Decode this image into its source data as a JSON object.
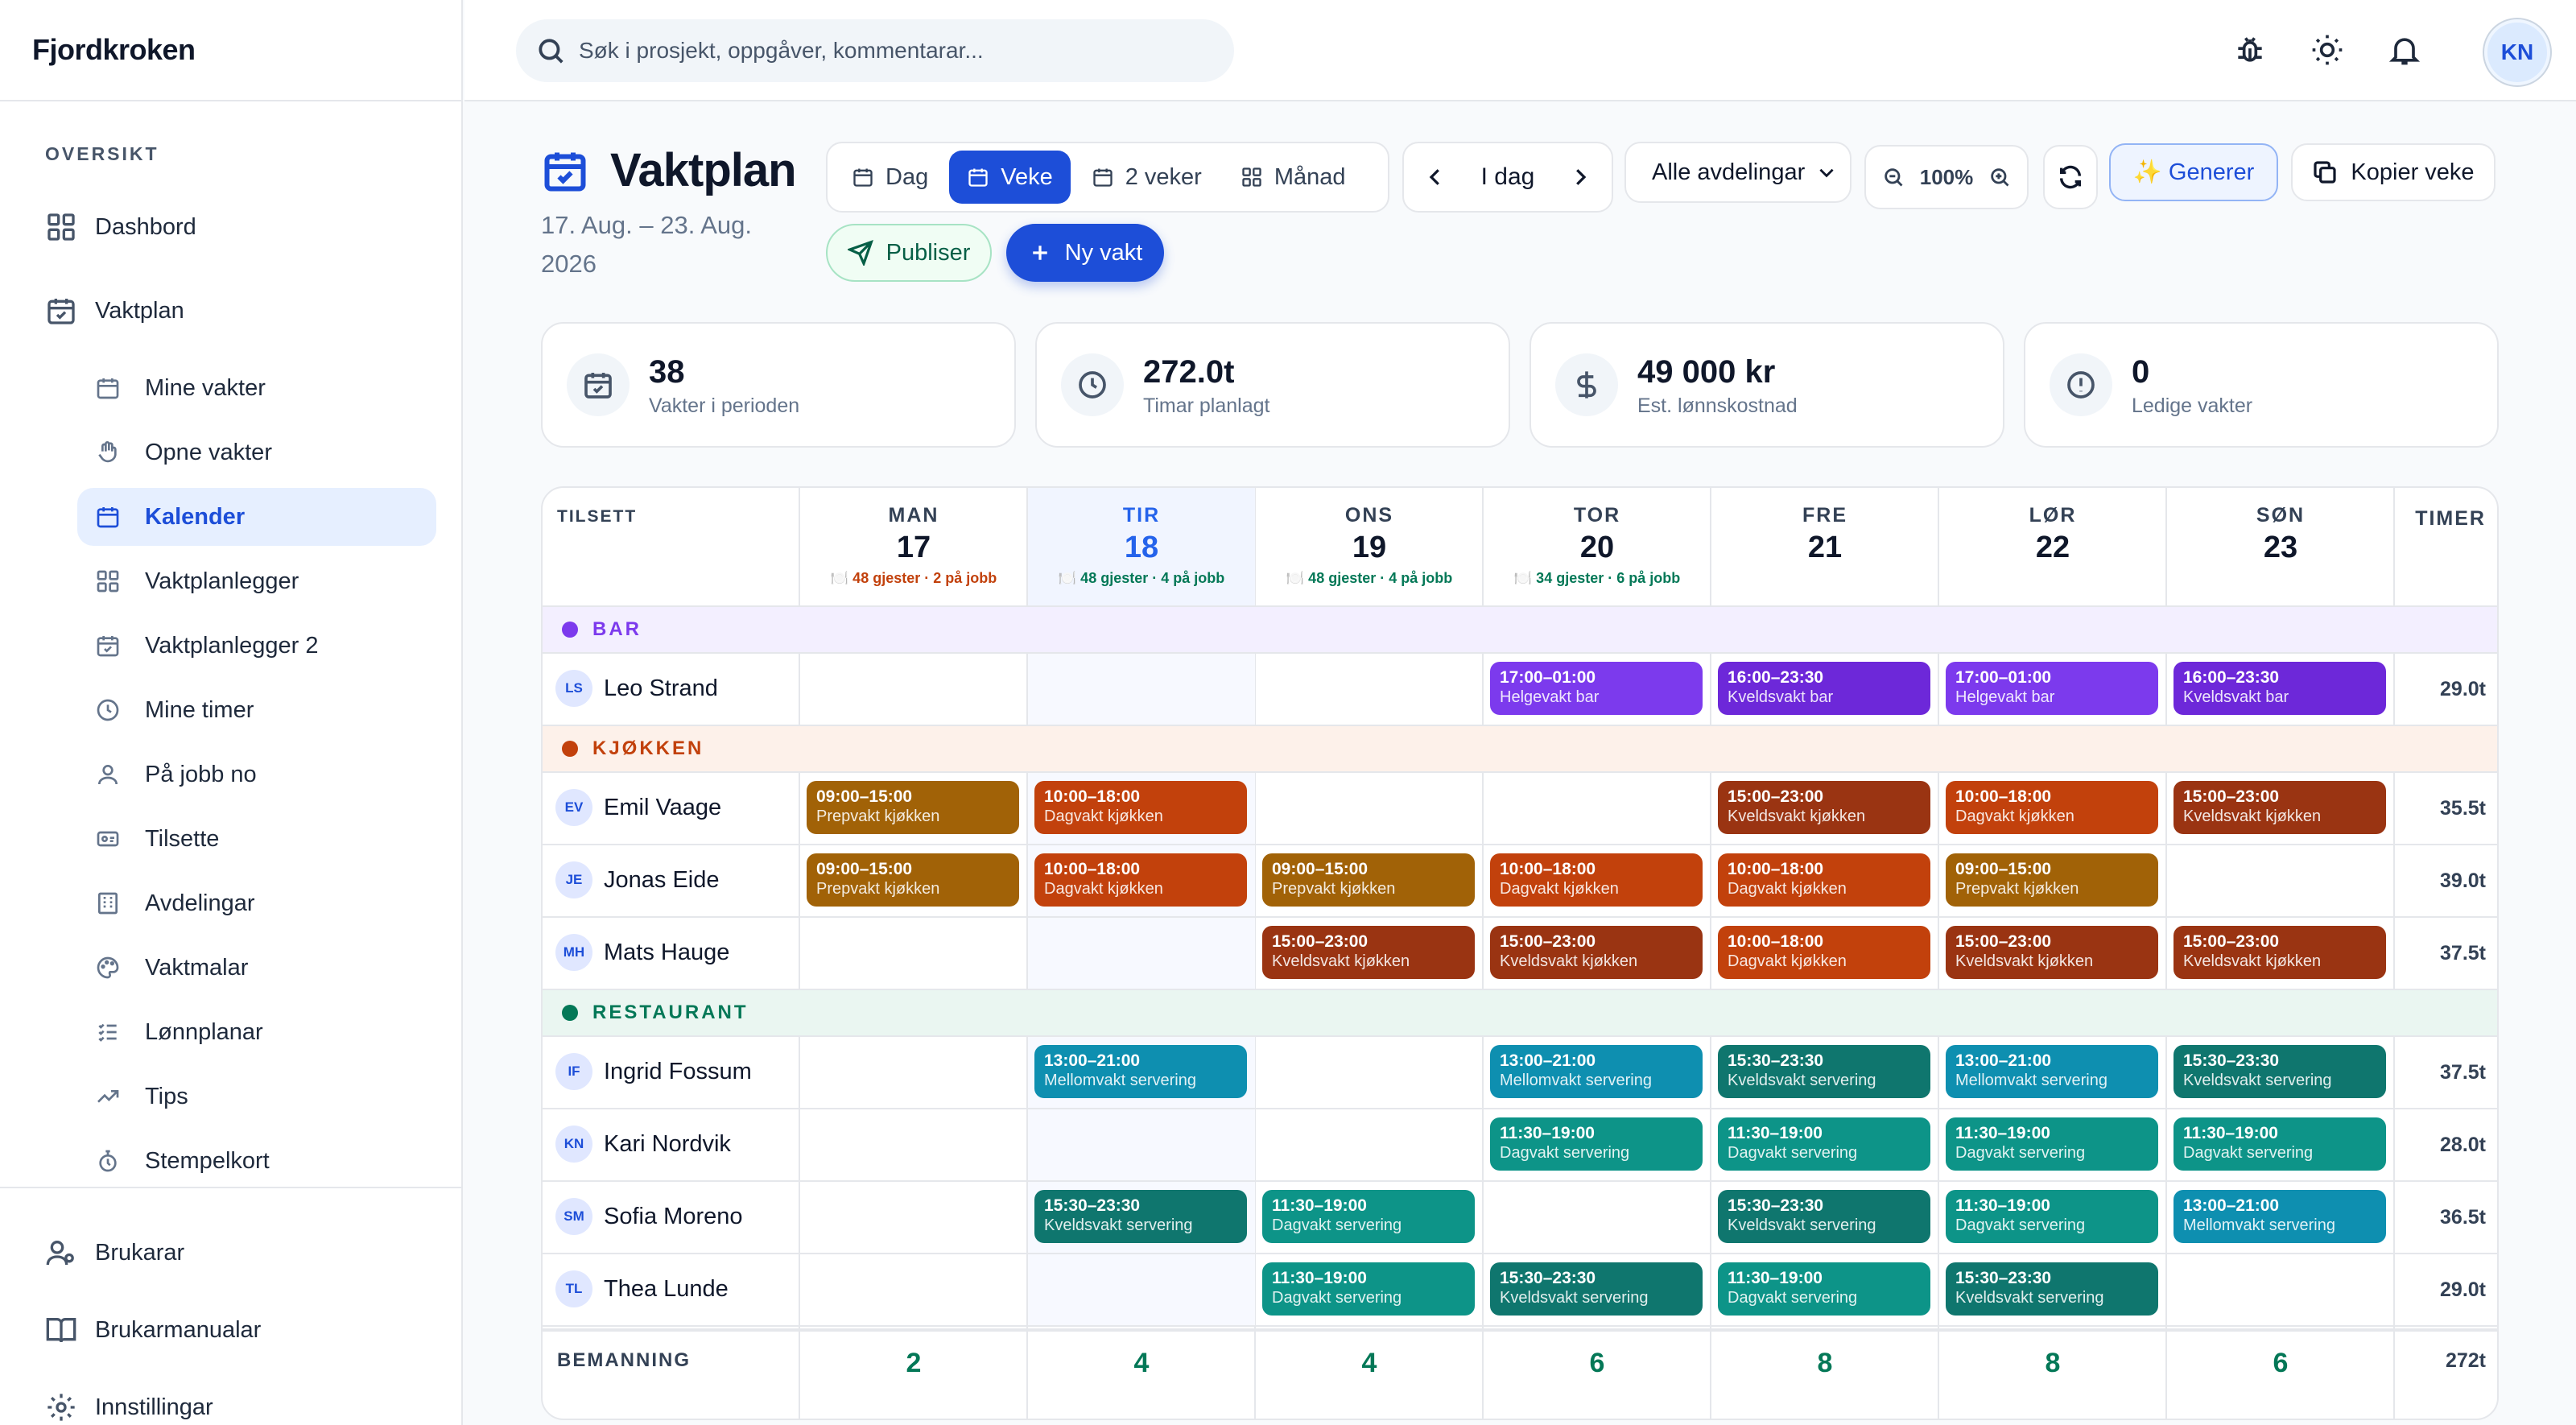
{
  "app": {
    "name": "Fjordkroken"
  },
  "sidebar": {
    "section": "OVERSIKT",
    "main_items": [
      {
        "label": "Dashbord",
        "icon": "grid-icon"
      },
      {
        "label": "Vaktplan",
        "icon": "calendar-check-icon"
      }
    ],
    "sub_items": [
      {
        "label": "Mine vakter",
        "icon": "calendar-icon",
        "active": false
      },
      {
        "label": "Opne vakter",
        "icon": "hand-icon",
        "active": false
      },
      {
        "label": "Kalender",
        "icon": "calendar-icon",
        "active": true
      },
      {
        "label": "Vaktplanlegger",
        "icon": "grid-icon",
        "active": false
      },
      {
        "label": "Vaktplanlegger 2",
        "icon": "calendar-check-icon",
        "active": false
      },
      {
        "label": "Mine timer",
        "icon": "clock-icon",
        "active": false
      },
      {
        "label": "På jobb no",
        "icon": "user-icon",
        "active": false
      },
      {
        "label": "Tilsette",
        "icon": "id-card-icon",
        "active": false
      },
      {
        "label": "Avdelingar",
        "icon": "building-icon",
        "active": false
      },
      {
        "label": "Vaktmalar",
        "icon": "palette-icon",
        "active": false
      },
      {
        "label": "Lønnplanar",
        "icon": "list-check-icon",
        "active": false
      },
      {
        "label": "Tips",
        "icon": "trend-icon",
        "active": false
      },
      {
        "label": "Stempelkort",
        "icon": "stopwatch-icon",
        "active": false
      }
    ],
    "bottom_items": [
      {
        "label": "Brukarar",
        "icon": "user-gear-icon"
      },
      {
        "label": "Brukarmanualar",
        "icon": "book-icon"
      },
      {
        "label": "Innstillingar",
        "icon": "gear-icon"
      }
    ]
  },
  "topbar": {
    "search_placeholder": "Søk i prosjekt, oppgåver, kommentarar...",
    "avatar": "KN"
  },
  "header": {
    "title": "Vaktplan",
    "date_range": "17. Aug. – 23. Aug. 2026",
    "views": [
      "Dag",
      "Veke",
      "2 veker",
      "Månad"
    ],
    "active_view": "Veke",
    "today_label": "I dag",
    "department_select": "Alle avdelingar",
    "zoom": "100%",
    "generate_label": "✨ Generer",
    "copy_week_label": "Kopier veke",
    "publish_label": "Publiser",
    "new_shift_label": "Ny vakt"
  },
  "stats": [
    {
      "value": "38",
      "label": "Vakter i perioden",
      "icon": "calendar-check-icon"
    },
    {
      "value": "272.0t",
      "label": "Timar planlagt",
      "icon": "clock-icon"
    },
    {
      "value": "49 000 kr",
      "label": "Est. lønnskostnad",
      "icon": "dollar-icon"
    },
    {
      "value": "0",
      "label": "Ledige vakter",
      "icon": "alert-circle-icon"
    }
  ],
  "schedule": {
    "staff_header": "TILSETT",
    "hours_header": "TIMER",
    "days": [
      {
        "dow": "MAN",
        "num": "17",
        "guests": "🍽️ 48 gjester · 2 på jobb",
        "guests_color": "#c2410c",
        "today": false
      },
      {
        "dow": "TIR",
        "num": "18",
        "guests": "🍽️ 48 gjester · 4 på jobb",
        "guests_color": "#047857",
        "today": true
      },
      {
        "dow": "ONS",
        "num": "19",
        "guests": "🍽️ 48 gjester · 4 på jobb",
        "guests_color": "#047857",
        "today": false
      },
      {
        "dow": "TOR",
        "num": "20",
        "guests": "🍽️ 34 gjester · 6 på jobb",
        "guests_color": "#047857",
        "today": false
      },
      {
        "dow": "FRE",
        "num": "21",
        "guests": "",
        "guests_color": "#047857",
        "today": false
      },
      {
        "dow": "LØR",
        "num": "22",
        "guests": "",
        "guests_color": "#047857",
        "today": false
      },
      {
        "dow": "SØN",
        "num": "23",
        "guests": "",
        "guests_color": "#047857",
        "today": false
      }
    ],
    "departments": [
      {
        "name": "BAR",
        "color": "#7c3aed",
        "bg": "#f3efff",
        "employees": [
          {
            "initials": "LS",
            "name": "Leo Strand",
            "hours": "29.0t",
            "shifts": [
              null,
              null,
              null,
              {
                "time": "17:00–01:00",
                "label": "Helgevakt bar",
                "color": "#7c3aed"
              },
              {
                "time": "16:00–23:30",
                "label": "Kveldsvakt bar",
                "color": "#6d28d9"
              },
              {
                "time": "17:00–01:00",
                "label": "Helgevakt bar",
                "color": "#7c3aed"
              },
              {
                "time": "16:00–23:30",
                "label": "Kveldsvakt bar",
                "color": "#6d28d9"
              }
            ]
          }
        ]
      },
      {
        "name": "KJØKKEN",
        "color": "#c2410c",
        "bg": "#fdf1ea",
        "employees": [
          {
            "initials": "EV",
            "name": "Emil Vaage",
            "hours": "35.5t",
            "shifts": [
              {
                "time": "09:00–15:00",
                "label": "Prepvakt kjøkken",
                "color": "#a16207"
              },
              {
                "time": "10:00–18:00",
                "label": "Dagvakt kjøkken",
                "color": "#c2410c"
              },
              null,
              null,
              {
                "time": "15:00–23:00",
                "label": "Kveldsvakt kjøkken",
                "color": "#9a3412"
              },
              {
                "time": "10:00–18:00",
                "label": "Dagvakt kjøkken",
                "color": "#c2410c"
              },
              {
                "time": "15:00–23:00",
                "label": "Kveldsvakt kjøkken",
                "color": "#9a3412"
              }
            ]
          },
          {
            "initials": "JE",
            "name": "Jonas Eide",
            "hours": "39.0t",
            "shifts": [
              {
                "time": "09:00–15:00",
                "label": "Prepvakt kjøkken",
                "color": "#a16207"
              },
              {
                "time": "10:00–18:00",
                "label": "Dagvakt kjøkken",
                "color": "#c2410c"
              },
              {
                "time": "09:00–15:00",
                "label": "Prepvakt kjøkken",
                "color": "#a16207"
              },
              {
                "time": "10:00–18:00",
                "label": "Dagvakt kjøkken",
                "color": "#c2410c"
              },
              {
                "time": "10:00–18:00",
                "label": "Dagvakt kjøkken",
                "color": "#c2410c"
              },
              {
                "time": "09:00–15:00",
                "label": "Prepvakt kjøkken",
                "color": "#a16207"
              },
              null
            ]
          },
          {
            "initials": "MH",
            "name": "Mats Hauge",
            "hours": "37.5t",
            "shifts": [
              null,
              null,
              {
                "time": "15:00–23:00",
                "label": "Kveldsvakt kjøkken",
                "color": "#9a3412"
              },
              {
                "time": "15:00–23:00",
                "label": "Kveldsvakt kjøkken",
                "color": "#9a3412"
              },
              {
                "time": "10:00–18:00",
                "label": "Dagvakt kjøkken",
                "color": "#c2410c"
              },
              {
                "time": "15:00–23:00",
                "label": "Kveldsvakt kjøkken",
                "color": "#9a3412"
              },
              {
                "time": "15:00–23:00",
                "label": "Kveldsvakt kjøkken",
                "color": "#9a3412"
              }
            ]
          }
        ]
      },
      {
        "name": "RESTAURANT",
        "color": "#047857",
        "bg": "#eaf6f1",
        "employees": [
          {
            "initials": "IF",
            "name": "Ingrid Fossum",
            "hours": "37.5t",
            "shifts": [
              null,
              {
                "time": "13:00–21:00",
                "label": "Mellomvakt servering",
                "color": "#0e8fb0"
              },
              null,
              {
                "time": "13:00–21:00",
                "label": "Mellomvakt servering",
                "color": "#0e8fb0"
              },
              {
                "time": "15:30–23:30",
                "label": "Kveldsvakt servering",
                "color": "#0f766e"
              },
              {
                "time": "13:00–21:00",
                "label": "Mellomvakt servering",
                "color": "#0e8fb0"
              },
              {
                "time": "15:30–23:30",
                "label": "Kveldsvakt servering",
                "color": "#0f766e"
              }
            ]
          },
          {
            "initials": "KN",
            "name": "Kari Nordvik",
            "hours": "28.0t",
            "shifts": [
              null,
              null,
              null,
              {
                "time": "11:30–19:00",
                "label": "Dagvakt servering",
                "color": "#0d9488"
              },
              {
                "time": "11:30–19:00",
                "label": "Dagvakt servering",
                "color": "#0d9488"
              },
              {
                "time": "11:30–19:00",
                "label": "Dagvakt servering",
                "color": "#0d9488"
              },
              {
                "time": "11:30–19:00",
                "label": "Dagvakt servering",
                "color": "#0d9488"
              }
            ]
          },
          {
            "initials": "SM",
            "name": "Sofia Moreno",
            "hours": "36.5t",
            "shifts": [
              null,
              {
                "time": "15:30–23:30",
                "label": "Kveldsvakt servering",
                "color": "#0f766e"
              },
              {
                "time": "11:30–19:00",
                "label": "Dagvakt servering",
                "color": "#0d9488"
              },
              null,
              {
                "time": "15:30–23:30",
                "label": "Kveldsvakt servering",
                "color": "#0f766e"
              },
              {
                "time": "11:30–19:00",
                "label": "Dagvakt servering",
                "color": "#0d9488"
              },
              {
                "time": "13:00–21:00",
                "label": "Mellomvakt servering",
                "color": "#0e8fb0"
              }
            ]
          },
          {
            "initials": "TL",
            "name": "Thea Lunde",
            "hours": "29.0t",
            "shifts": [
              null,
              null,
              {
                "time": "11:30–19:00",
                "label": "Dagvakt servering",
                "color": "#0d9488"
              },
              {
                "time": "15:30–23:30",
                "label": "Kveldsvakt servering",
                "color": "#0f766e"
              },
              {
                "time": "11:30–19:00",
                "label": "Dagvakt servering",
                "color": "#0d9488"
              },
              {
                "time": "15:30–23:30",
                "label": "Kveldsvakt servering",
                "color": "#0f766e"
              },
              null
            ]
          }
        ]
      }
    ],
    "footer": {
      "label": "BEMANNING",
      "counts": [
        "2",
        "4",
        "4",
        "6",
        "8",
        "8",
        "6"
      ],
      "total": "272t"
    }
  }
}
